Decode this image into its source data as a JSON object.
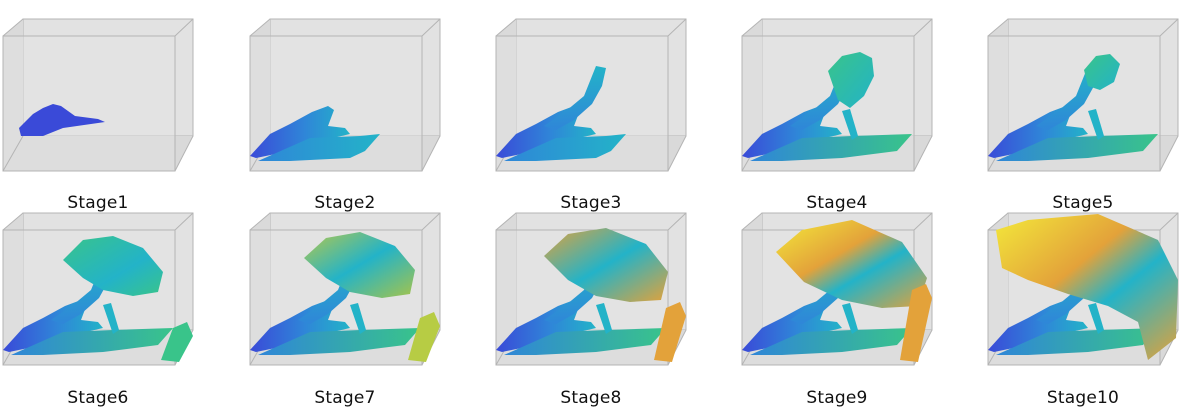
{
  "stages": [
    {
      "label": "Stage1",
      "index": 1
    },
    {
      "label": "Stage2",
      "index": 2
    },
    {
      "label": "Stage3",
      "index": 3
    },
    {
      "label": "Stage4",
      "index": 4
    },
    {
      "label": "Stage5",
      "index": 5
    },
    {
      "label": "Stage6",
      "index": 6
    },
    {
      "label": "Stage7",
      "index": 7
    },
    {
      "label": "Stage8",
      "index": 8
    },
    {
      "label": "Stage9",
      "index": 9
    },
    {
      "label": "Stage10",
      "index": 10
    }
  ],
  "colors": {
    "box_fill": "#e2e2e2",
    "box_edge": "#b4b4b4",
    "low": "#3a4ad8",
    "mid_low": "#2f86d8",
    "mid": "#23b3c8",
    "mid_high": "#39c48a",
    "high": "#e3a23a",
    "max": "#f3e93a"
  }
}
